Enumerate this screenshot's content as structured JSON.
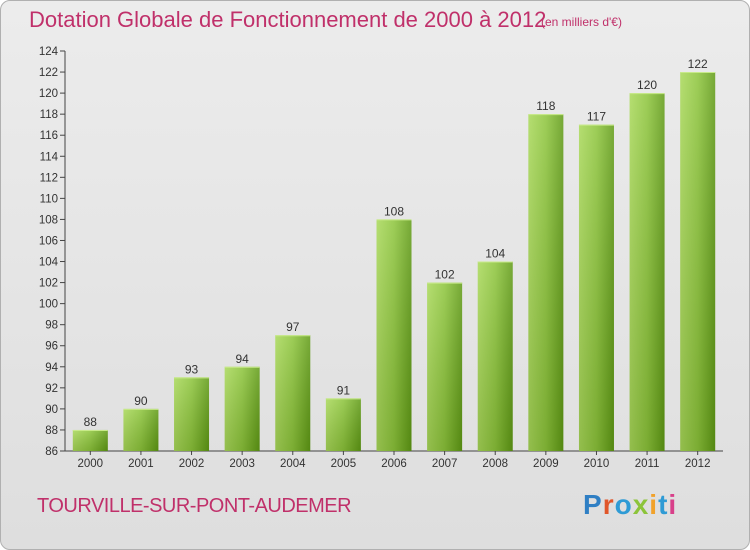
{
  "title": "Dotation Globale de Fonctionnement de 2000 à 2012",
  "unit_note": "(en milliers d'€)",
  "commune": "TOURVILLE-SUR-PONT-AUDEMER",
  "logo": {
    "text": "Proxiti",
    "letters": [
      {
        "ch": "P",
        "color": "#2f7fc4"
      },
      {
        "ch": "r",
        "color": "#e0562a"
      },
      {
        "ch": "o",
        "color": "#2f9bd5"
      },
      {
        "ch": "x",
        "color": "#8cc43a"
      },
      {
        "ch": "i",
        "color": "#f1a22b"
      },
      {
        "ch": "t",
        "color": "#2f9bd5"
      },
      {
        "ch": "i",
        "color": "#d8408a"
      }
    ]
  },
  "colors": {
    "accent": "#c0306a",
    "bar_light": "#9ccf4a",
    "bar_dark": "#5f9a14"
  },
  "chart_data": {
    "type": "bar",
    "categories": [
      "2000",
      "2001",
      "2002",
      "2003",
      "2004",
      "2005",
      "2006",
      "2007",
      "2008",
      "2009",
      "2010",
      "2011",
      "2012"
    ],
    "values": [
      88,
      90,
      93,
      94,
      97,
      91,
      108,
      102,
      104,
      118,
      117,
      120,
      122
    ],
    "ylim": [
      86,
      124
    ],
    "yticks": [
      86,
      88,
      90,
      92,
      94,
      96,
      98,
      100,
      102,
      104,
      106,
      108,
      110,
      112,
      114,
      116,
      118,
      120,
      122,
      124
    ],
    "grid": false
  }
}
